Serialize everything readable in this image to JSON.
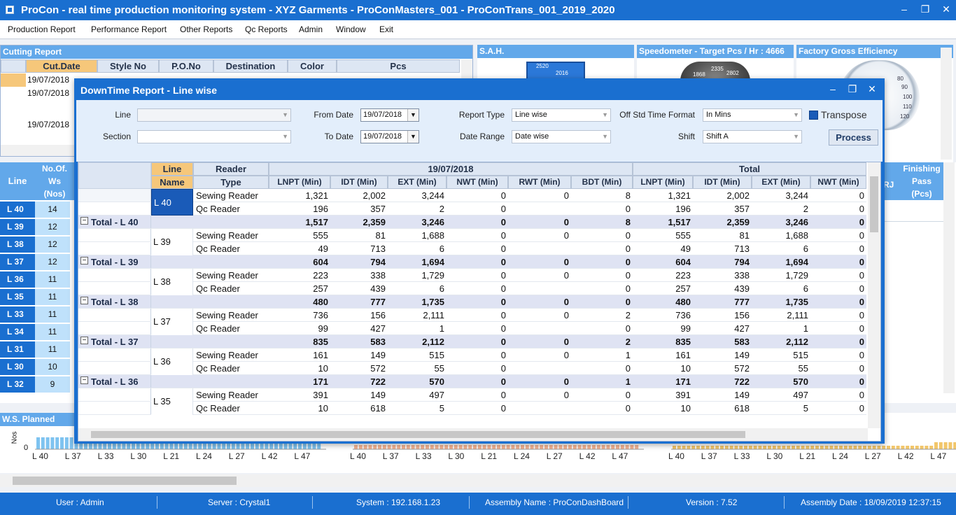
{
  "app": {
    "title": "ProCon - real time production monitoring system - XYZ Garments - ProConMasters_001 - ProConTrans_001_2019_2020"
  },
  "window_controls": {
    "minimize": "–",
    "maximize": "❐",
    "close": "✕"
  },
  "menu": [
    "Production Report",
    "Performance Report",
    "Other Reports",
    "Qc Reports",
    "Admin",
    "Window",
    "Exit"
  ],
  "cutting_report": {
    "title": "Cutting Report",
    "columns": [
      "Cut.Date",
      "Style No",
      "P.O.No",
      "Destination",
      "Color",
      "Pcs"
    ],
    "dates": [
      "19/07/2018",
      "19/07/2018",
      "19/07/2018"
    ]
  },
  "panels": {
    "sah": "S.A.H.",
    "speedometer": "Speedometer - Target Pcs / Hr : 4666",
    "fge": "Factory Gross Efficiency",
    "speed_ticks": [
      "1868",
      "2335",
      "2802"
    ],
    "sah_ticks": [
      "2520",
      "2016"
    ],
    "fge_ticks": [
      "80",
      "90",
      "100",
      "110",
      "120"
    ]
  },
  "lines_panel": {
    "col_line": "Line",
    "col_ws": [
      "No.Of.",
      "Ws",
      "(Nos)"
    ],
    "rows": [
      {
        "line": "L 40",
        "ws": "14"
      },
      {
        "line": "L 39",
        "ws": "12"
      },
      {
        "line": "L 38",
        "ws": "12"
      },
      {
        "line": "L 37",
        "ws": "12"
      },
      {
        "line": "L 36",
        "ws": "11"
      },
      {
        "line": "L 35",
        "ws": "11"
      },
      {
        "line": "L 33",
        "ws": "11"
      },
      {
        "line": "L 34",
        "ws": "11"
      },
      {
        "line": "L 31",
        "ws": "11"
      },
      {
        "line": "L 30",
        "ws": "10"
      },
      {
        "line": "L 32",
        "ws": "9"
      }
    ]
  },
  "finishing_panel": {
    "rj": "RJ",
    "h1": "Finishing",
    "h2": "Pass",
    "h3": "(Pcs)"
  },
  "ws_planned": {
    "title": "W.S. Planned",
    "ylabel": "Nos",
    "zero": "0",
    "charts": [
      {
        "labels": [
          "L 40",
          "L 37",
          "L 33",
          "L 30",
          "L 21",
          "L 24",
          "L 27",
          "L 42",
          "L 47"
        ]
      },
      {
        "labels": [
          "L 40",
          "L 37",
          "L 33",
          "L 30",
          "L 21",
          "L 24",
          "L 27",
          "L 42",
          "L 47"
        ]
      },
      {
        "labels": [
          "L 40",
          "L 37",
          "L 33",
          "L 30",
          "L 21",
          "L 24",
          "L 27",
          "L 42",
          "L 47"
        ]
      }
    ]
  },
  "modal": {
    "title": "DownTime Report - Line wise",
    "filters": {
      "line_label": "Line",
      "line_value": "",
      "section_label": "Section",
      "section_value": "",
      "from_date_label": "From Date",
      "from_date": "19/07/2018",
      "to_date_label": "To Date",
      "to_date": "19/07/2018",
      "report_type_label": "Report Type",
      "report_type": "Line wise",
      "date_range_label": "Date Range",
      "date_range": "Date wise",
      "off_std_label": "Off Std Time Format",
      "off_std": "In Mins",
      "shift_label": "Shift",
      "shift": "Shift A",
      "transpose_label": "Transpose",
      "process_label": "Process"
    },
    "grid": {
      "h_line": "Line",
      "h_name": "Name",
      "h_reader": "Reader",
      "h_type": "Type",
      "group_date": "19/07/2018",
      "group_total": "Total",
      "cols_date": [
        "LNPT (Min)",
        "IDT (Min)",
        "EXT (Min)",
        "NWT (Min)",
        "RWT (Min)",
        "BDT (Min)"
      ],
      "cols_total": [
        "LNPT (Min)",
        "IDT (Min)",
        "EXT (Min)",
        "NWT (Min)"
      ],
      "rows": [
        {
          "kind": "data",
          "line": "L 40",
          "type": "Sewing Reader",
          "v": [
            "1,321",
            "2,002",
            "3,244",
            "0",
            "0",
            "8"
          ],
          "t": [
            "1,321",
            "2,002",
            "3,244",
            "0"
          ]
        },
        {
          "kind": "data",
          "line": "",
          "type": "Qc Reader",
          "v": [
            "196",
            "357",
            "2",
            "0",
            "",
            "0"
          ],
          "t": [
            "196",
            "357",
            "2",
            "0"
          ]
        },
        {
          "kind": "total",
          "label": "Total - L 40",
          "v": [
            "1,517",
            "2,359",
            "3,246",
            "0",
            "0",
            "8"
          ],
          "t": [
            "1,517",
            "2,359",
            "3,246",
            "0"
          ]
        },
        {
          "kind": "data",
          "line": "L 39",
          "type": "Sewing Reader",
          "v": [
            "555",
            "81",
            "1,688",
            "0",
            "0",
            "0"
          ],
          "t": [
            "555",
            "81",
            "1,688",
            "0"
          ]
        },
        {
          "kind": "data",
          "line": "",
          "type": "Qc Reader",
          "v": [
            "49",
            "713",
            "6",
            "0",
            "",
            "0"
          ],
          "t": [
            "49",
            "713",
            "6",
            "0"
          ]
        },
        {
          "kind": "total",
          "label": "Total - L 39",
          "v": [
            "604",
            "794",
            "1,694",
            "0",
            "0",
            "0"
          ],
          "t": [
            "604",
            "794",
            "1,694",
            "0"
          ]
        },
        {
          "kind": "data",
          "line": "L 38",
          "type": "Sewing Reader",
          "v": [
            "223",
            "338",
            "1,729",
            "0",
            "0",
            "0"
          ],
          "t": [
            "223",
            "338",
            "1,729",
            "0"
          ]
        },
        {
          "kind": "data",
          "line": "",
          "type": "Qc Reader",
          "v": [
            "257",
            "439",
            "6",
            "0",
            "",
            "0"
          ],
          "t": [
            "257",
            "439",
            "6",
            "0"
          ]
        },
        {
          "kind": "total",
          "label": "Total - L 38",
          "v": [
            "480",
            "777",
            "1,735",
            "0",
            "0",
            "0"
          ],
          "t": [
            "480",
            "777",
            "1,735",
            "0"
          ]
        },
        {
          "kind": "data",
          "line": "L 37",
          "type": "Sewing Reader",
          "v": [
            "736",
            "156",
            "2,111",
            "0",
            "0",
            "2"
          ],
          "t": [
            "736",
            "156",
            "2,111",
            "0"
          ]
        },
        {
          "kind": "data",
          "line": "",
          "type": "Qc Reader",
          "v": [
            "99",
            "427",
            "1",
            "0",
            "",
            "0"
          ],
          "t": [
            "99",
            "427",
            "1",
            "0"
          ]
        },
        {
          "kind": "total",
          "label": "Total - L 37",
          "v": [
            "835",
            "583",
            "2,112",
            "0",
            "0",
            "2"
          ],
          "t": [
            "835",
            "583",
            "2,112",
            "0"
          ]
        },
        {
          "kind": "data",
          "line": "L 36",
          "type": "Sewing Reader",
          "v": [
            "161",
            "149",
            "515",
            "0",
            "0",
            "1"
          ],
          "t": [
            "161",
            "149",
            "515",
            "0"
          ]
        },
        {
          "kind": "data",
          "line": "",
          "type": "Qc Reader",
          "v": [
            "10",
            "572",
            "55",
            "0",
            "",
            "0"
          ],
          "t": [
            "10",
            "572",
            "55",
            "0"
          ]
        },
        {
          "kind": "total",
          "label": "Total - L 36",
          "v": [
            "171",
            "722",
            "570",
            "0",
            "0",
            "1"
          ],
          "t": [
            "171",
            "722",
            "570",
            "0"
          ]
        },
        {
          "kind": "data",
          "line": "L 35",
          "type": "Sewing Reader",
          "v": [
            "391",
            "149",
            "497",
            "0",
            "0",
            "0"
          ],
          "t": [
            "391",
            "149",
            "497",
            "0"
          ]
        },
        {
          "kind": "data",
          "line": "",
          "type": "Qc Reader",
          "v": [
            "10",
            "618",
            "5",
            "0",
            "",
            "0"
          ],
          "t": [
            "10",
            "618",
            "5",
            "0"
          ]
        }
      ]
    }
  },
  "status": {
    "user": "User : Admin",
    "server": "Server : Crystal1",
    "system": "System : 192.168.1.23",
    "assembly": "Assembly Name : ProConDashBoard",
    "version": "Version : 7.52",
    "assembly_date": "Assembly Date : 18/09/2019 12:37:15"
  },
  "colors": {
    "accent": "#1a6fd0",
    "header_blue": "#62a8ea",
    "total_row": "#dfe3f3",
    "selected_header": "#f6c77a"
  }
}
